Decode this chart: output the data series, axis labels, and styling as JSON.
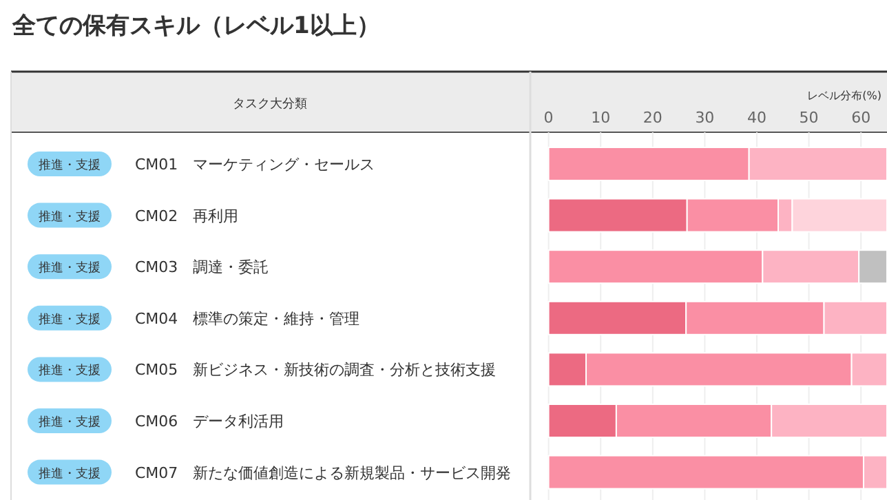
{
  "chart_data": {
    "type": "bar",
    "orientation": "horizontal",
    "stacked": true,
    "title": "全ての保有スキル（レベル1以上）",
    "xlabel": "レベル分布(%)",
    "ylabel": "タスク大分類",
    "categories": [
      "CM01　マーケティング・セールス",
      "CM02　再利用",
      "CM03　調達・委託",
      "CM04　標準の策定・維持・管理",
      "CM05　新ビジネス・新技術の調査・分析と技術支援",
      "CM06　データ利活用",
      "CM07　新たな価値創造による新規製品・サービス開発"
    ],
    "series": [
      {
        "color": "#ec6a82",
        "values": [
          null,
          26.6,
          null,
          26.4,
          7.2,
          13.0,
          null
        ]
      },
      {
        "color": "#fa8fa4",
        "values": [
          38.5,
          17.5,
          41.1,
          26.5,
          51.0,
          29.8,
          60.5
        ]
      },
      {
        "color": "#fdb3c3",
        "values": [
          26.5,
          2.7,
          18.5,
          12.1,
          6.8,
          22.2,
          4.5
        ]
      },
      {
        "color": "#fed4dc",
        "values": [
          null,
          18.2,
          null,
          null,
          null,
          null,
          null
        ]
      },
      {
        "color": "#c0c0c0",
        "values": [
          null,
          null,
          5.4,
          null,
          null,
          null,
          null
        ]
      }
    ],
    "xlim": [
      0,
      65
    ],
    "xticks": [
      0,
      10,
      20,
      30,
      40,
      50,
      60
    ],
    "grid": "x",
    "annotations": [
      "推進・支援",
      "推進・支援",
      "推進・支援",
      "推進・支援",
      "推進・支援",
      "推進・支援",
      "推進・支援"
    ]
  }
}
